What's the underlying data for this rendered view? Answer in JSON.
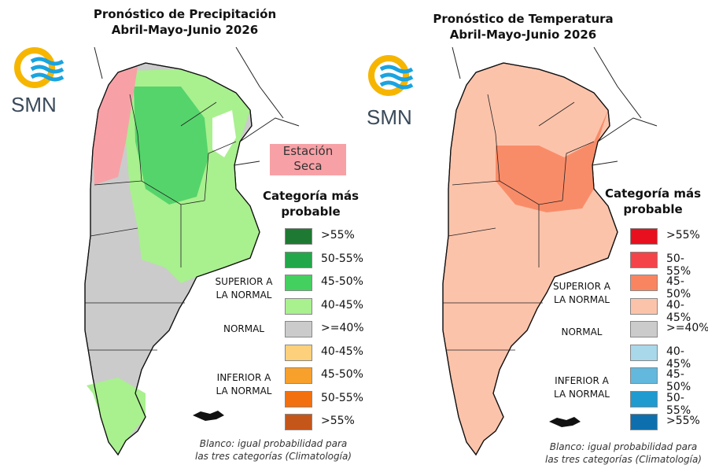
{
  "left": {
    "title_line1": "Pronóstico de Precipitación",
    "title_line2": "Abril-Mayo-Junio 2026",
    "logo_text": "SMN",
    "dry_season_label": "Estación Seca",
    "legend_title_line1": "Categoría más",
    "legend_title_line2": "probable",
    "groups": {
      "superior_1": "SUPERIOR A",
      "superior_2": "LA NORMAL",
      "normal": "NORMAL",
      "inferior_1": "INFERIOR A",
      "inferior_2": "LA NORMAL"
    },
    "legend": [
      {
        "label": ">55%",
        "color": "#1e7a32"
      },
      {
        "label": "50-55%",
        "color": "#22a84a"
      },
      {
        "label": "45-50%",
        "color": "#44d05f"
      },
      {
        "label": "40-45%",
        "color": "#a9f08f"
      },
      {
        "label": ">=40%",
        "color": "#cbcbcb"
      },
      {
        "label": "40-45%",
        "color": "#fdd07c"
      },
      {
        "label": "45-50%",
        "color": "#f8a02c"
      },
      {
        "label": "50-55%",
        "color": "#f2700f"
      },
      {
        "label": ">55%",
        "color": "#c4561a"
      }
    ],
    "note_line1": "Blanco: igual probabilidad para",
    "note_line2": "las tres categorías (Climatología)"
  },
  "right": {
    "title_line1": "Pronóstico de Temperatura",
    "title_line2": "Abril-Mayo-Junio 2026",
    "logo_text": "SMN",
    "legend_title_line1": "Categoría más",
    "legend_title_line2": "probable",
    "groups": {
      "superior_1": "SUPERIOR A",
      "superior_2": "LA NORMAL",
      "normal": "NORMAL",
      "inferior_1": "INFERIOR A",
      "inferior_2": "LA NORMAL"
    },
    "legend": [
      {
        "label": ">55%",
        "color": "#e8101e"
      },
      {
        "label": "50-55%",
        "color": "#f4444a"
      },
      {
        "label": "45-50%",
        "color": "#f98560"
      },
      {
        "label": "40-45%",
        "color": "#fcc3ab"
      },
      {
        "label": ">=40%",
        "color": "#cbcbcb"
      },
      {
        "label": "40-45%",
        "color": "#a8d8ea"
      },
      {
        "label": "45-50%",
        "color": "#62b8dd"
      },
      {
        "label": "50-55%",
        "color": "#1f9bd0"
      },
      {
        "label": ">55%",
        "color": "#0e6fae"
      }
    ],
    "note_line1": "Blanco: igual probabilidad para",
    "note_line2": "las tres categorías (Climatología)"
  },
  "colors": {
    "logo_yellow": "#f6b600",
    "logo_blue": "#1aa3e0",
    "dry_season": "#f7a1a6"
  }
}
